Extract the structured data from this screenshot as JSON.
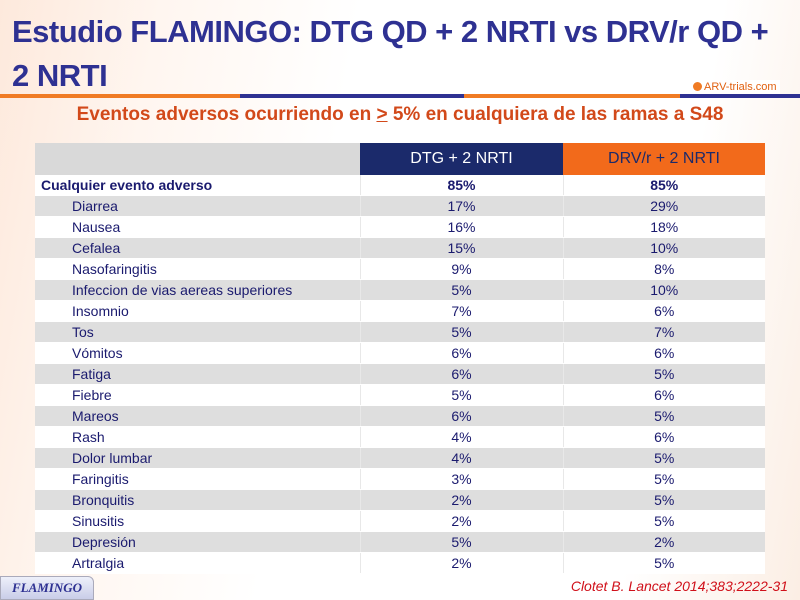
{
  "title": "Estudio FLAMINGO: DTG QD + 2 NRTI vs DRV/r QD + 2 NRTI",
  "logo": "ARV-trials.com",
  "subtitle_pre": "Eventos adversos ocurriendo en ",
  "subtitle_sym": ">",
  "subtitle_post": " 5% en cualquiera de las ramas a S48",
  "table": {
    "headers": [
      "",
      "DTG + 2 NRTI",
      "DRV/r + 2 NRTI"
    ],
    "rows": [
      [
        "Cualquier  evento adverso",
        "85%",
        "85%"
      ],
      [
        "Diarrea",
        "17%",
        "29%"
      ],
      [
        "Nausea",
        "16%",
        "18%"
      ],
      [
        "Cefalea",
        "15%",
        "10%"
      ],
      [
        "Nasofaringitis",
        "9%",
        "8%"
      ],
      [
        "Infeccion de vias aereas superiores",
        "5%",
        "10%"
      ],
      [
        "Insomnio",
        "7%",
        "6%"
      ],
      [
        "Tos",
        "5%",
        "7%"
      ],
      [
        "Vómitos",
        "6%",
        "6%"
      ],
      [
        "Fatiga",
        "6%",
        "5%"
      ],
      [
        "Fiebre",
        "5%",
        "6%"
      ],
      [
        "Mareos",
        "6%",
        "5%"
      ],
      [
        "Rash",
        "4%",
        "6%"
      ],
      [
        "Dolor lumbar",
        "4%",
        "5%"
      ],
      [
        "Faringitis",
        "3%",
        "5%"
      ],
      [
        "Bronquitis",
        "2%",
        "5%"
      ],
      [
        "Sinusitis",
        "2%",
        "5%"
      ],
      [
        "Depresión",
        "5%",
        "2%"
      ],
      [
        "Artralgia",
        "2%",
        "5%"
      ]
    ]
  },
  "badge": "FLAMINGO",
  "citation": "Clotet B. Lancet 2014;383;2222-31"
}
